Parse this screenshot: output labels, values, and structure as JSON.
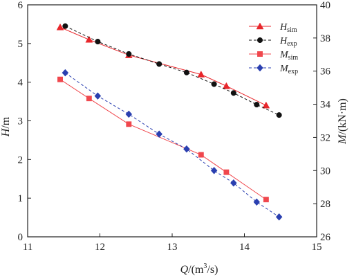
{
  "chart_data": {
    "type": "line",
    "xlabel": {
      "var": "Q",
      "unit": "/(m",
      "sup": "3",
      "unit_end": "/s)"
    },
    "ylabel_left": {
      "var": "H",
      "unit": "/m"
    },
    "ylabel_right": {
      "var": "M",
      "unit": "/(kN·m)"
    },
    "xlim": [
      11,
      15
    ],
    "ylim_left": [
      0,
      6
    ],
    "ylim_right": [
      26,
      40
    ],
    "x_ticks": [
      11,
      12,
      13,
      14,
      15
    ],
    "y_left_ticks": [
      0,
      1,
      2,
      3,
      4,
      5,
      6
    ],
    "y_right_ticks": [
      26,
      28,
      30,
      32,
      34,
      36,
      38,
      40
    ],
    "grid": false,
    "legend_position": "top-right",
    "series": [
      {
        "name_main": "H",
        "name_sub": "sim",
        "axis": "left",
        "color": "#e8262b",
        "line": "solid",
        "marker": "triangle",
        "x": [
          11.45,
          11.85,
          12.4,
          13.4,
          13.75,
          14.3
        ],
        "y": [
          5.42,
          5.1,
          4.7,
          4.2,
          3.9,
          3.4
        ]
      },
      {
        "name_main": "H",
        "name_sub": "exp",
        "axis": "left",
        "color": "#111111",
        "line": "dashed",
        "marker": "circle",
        "x": [
          11.52,
          11.97,
          12.4,
          12.82,
          13.2,
          13.58,
          13.85,
          14.17,
          14.48
        ],
        "y": [
          5.45,
          5.05,
          4.73,
          4.47,
          4.25,
          3.95,
          3.72,
          3.42,
          3.15
        ]
      },
      {
        "name_main": "M",
        "name_sub": "sim",
        "axis": "right",
        "color": "#f0474d",
        "line": "solid",
        "marker": "square",
        "x": [
          11.45,
          11.85,
          12.4,
          13.4,
          13.75,
          14.3
        ],
        "y": [
          35.5,
          34.35,
          32.8,
          30.95,
          29.9,
          28.25
        ]
      },
      {
        "name_main": "M",
        "name_sub": "exp",
        "axis": "right",
        "color": "#2a3fb0",
        "line": "dashed",
        "marker": "diamond",
        "x": [
          11.52,
          11.97,
          12.4,
          12.82,
          13.2,
          13.58,
          13.85,
          14.17,
          14.48
        ],
        "y": [
          35.9,
          34.5,
          33.4,
          32.2,
          31.3,
          30.0,
          29.25,
          28.1,
          27.2
        ]
      }
    ]
  }
}
